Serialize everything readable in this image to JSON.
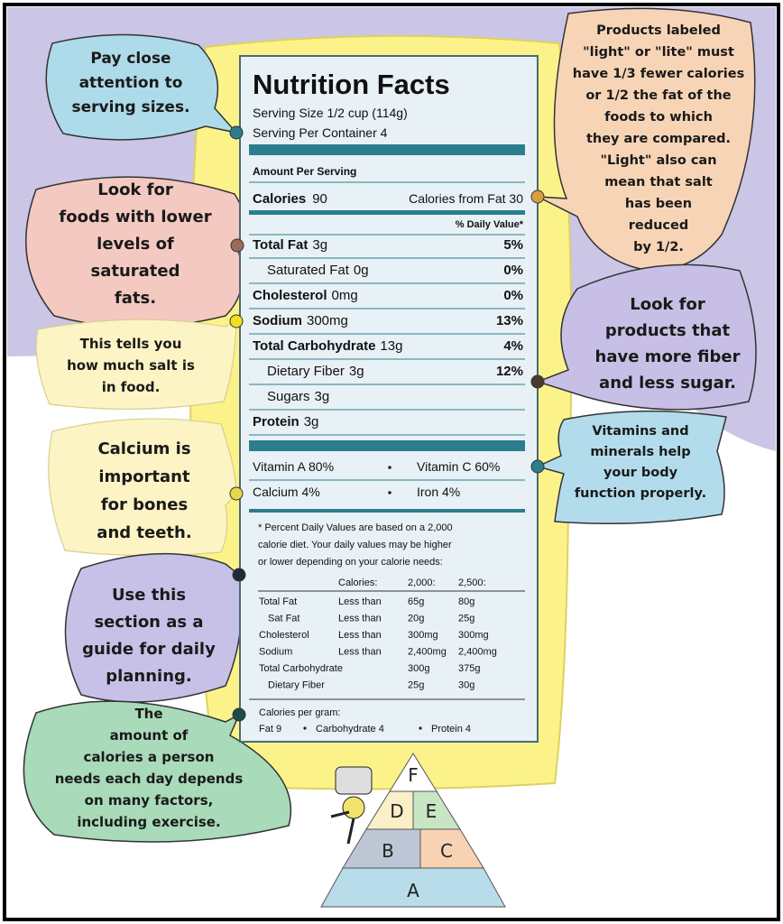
{
  "label": {
    "title": "Nutrition Facts",
    "serving_size": "Serving Size 1/2 cup (114g)",
    "servings": "Serving Per Container 4",
    "amount_per_serving": "Amount Per Serving",
    "calories": {
      "label": "Calories",
      "value": "90",
      "from_fat": "Calories from Fat 30"
    },
    "daily_value_header": "% Daily Value*",
    "nutrients": [
      {
        "name": "Total Fat",
        "amount": "3g",
        "dv": "5%"
      },
      {
        "name": "Saturated Fat",
        "amount": "0g",
        "dv": "0%",
        "sub": true
      },
      {
        "name": "Cholesterol",
        "amount": "0mg",
        "dv": "0%"
      },
      {
        "name": "Sodium",
        "amount": "300mg",
        "dv": "13%"
      },
      {
        "name": "Total Carbohydrate",
        "amount": "13g",
        "dv": "4%"
      },
      {
        "name": "Dietary Fiber",
        "amount": "3g",
        "dv": "12%",
        "sub": true
      },
      {
        "name": "Sugars",
        "amount": "3g",
        "sub": true
      },
      {
        "name": "Protein",
        "amount": "3g"
      }
    ],
    "vitamins": [
      [
        "Vitamin A 80%",
        "Vitamin C 60%"
      ],
      [
        "Calcium 4%",
        "Iron 4%"
      ]
    ],
    "footnote": [
      "* Percent Daily Values are based on a 2,000",
      "calorie diet. Your daily values may be higher",
      "or lower depending on your calorie needs:"
    ],
    "dv_table": {
      "header": [
        "Calories:",
        "2,000:",
        "2,500:"
      ],
      "rows": [
        {
          "name": "Total Fat",
          "limit": "Less than",
          "values": [
            "65g",
            "80g"
          ]
        },
        {
          "name": "Sat Fat",
          "limit": "Less than",
          "values": [
            "20g",
            "25g"
          ],
          "sub": true
        },
        {
          "name": "Cholesterol",
          "limit": "Less than",
          "values": [
            "300mg",
            "300mg"
          ]
        },
        {
          "name": "Sodium",
          "limit": "Less than",
          "values": [
            "2,400mg",
            "2,400mg"
          ]
        },
        {
          "name": "Total Carbohydrate",
          "values": [
            "300g",
            "375g"
          ]
        },
        {
          "name": "Dietary Fiber",
          "values": [
            "25g",
            "30g"
          ],
          "sub": true
        }
      ]
    },
    "calories_per_gram": "Calories per gram:",
    "per_gram": [
      "Fat 9",
      "Carbohydrate 4",
      "Protein 4"
    ]
  },
  "callouts": [
    {
      "lines": [
        "Pay close",
        "attention to",
        "serving sizes."
      ]
    },
    {
      "lines": [
        "Look for",
        "foods with lower",
        "levels of",
        "saturated",
        "fats."
      ]
    },
    {
      "lines": [
        "This tells you",
        "how much salt is",
        "in food."
      ]
    },
    {
      "lines": [
        "Calcium is",
        "important",
        "for bones",
        "and teeth."
      ]
    },
    {
      "lines": [
        "Use this",
        "section as a",
        "guide for daily",
        "planning."
      ]
    },
    {
      "lines": [
        "The",
        "amount of",
        "calories a person",
        "needs each day depends",
        "on many factors,",
        "including exercise."
      ]
    },
    {
      "lines": [
        "Products labeled",
        "\"light\" or \"lite\" must",
        "have 1/3 fewer calories",
        "or 1/2 the fat of the",
        "foods to which",
        "they are compared.",
        "\"Light\" also can",
        "mean that salt",
        "has been",
        "reduced",
        "by 1/2."
      ]
    },
    {
      "lines": [
        "Look for",
        "products that",
        "have more fiber",
        "and less sugar."
      ]
    },
    {
      "lines": [
        "Vitamins and",
        "minerals help",
        "your body",
        "function properly."
      ]
    }
  ],
  "pyramid": [
    "F",
    "D",
    "E",
    "B",
    "C",
    "A"
  ]
}
